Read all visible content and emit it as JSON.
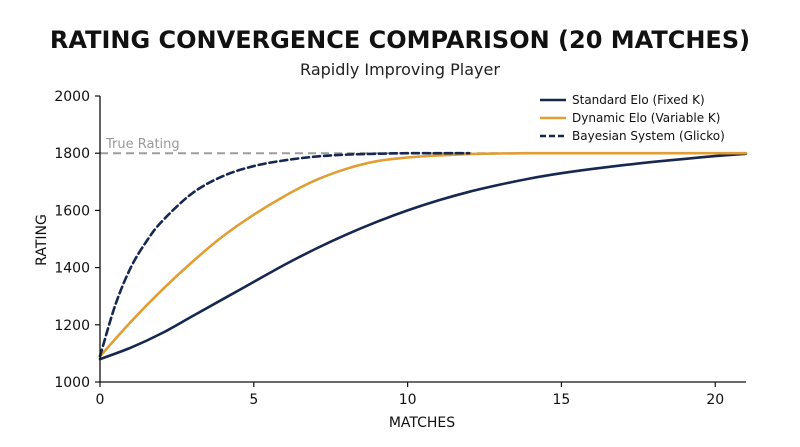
{
  "chart_data": {
    "type": "line",
    "title": "RATING CONVERGENCE COMPARISON (20 MATCHES)",
    "subtitle": "Rapidly Improving Player",
    "xlabel": "MATCHES",
    "ylabel": "RATING",
    "xlim": [
      0,
      21
    ],
    "ylim": [
      1000,
      2000
    ],
    "xticks": [
      0,
      5,
      10,
      15,
      20
    ],
    "yticks": [
      1000,
      1200,
      1400,
      1600,
      1800,
      2000
    ],
    "grid": false,
    "legend_position": "top-right",
    "reference_line": {
      "label": "True Rating",
      "y": 1800,
      "color": "#9e9e9e",
      "style": "dashed"
    },
    "series": [
      {
        "name": "Standard Elo (Fixed K)",
        "color": "#16284f",
        "style": "solid",
        "x": [
          0,
          1,
          2,
          3,
          4,
          5,
          6,
          7,
          8,
          9,
          10,
          11,
          12,
          13,
          14,
          15,
          16,
          17,
          18,
          19,
          20,
          21
        ],
        "y": [
          1080,
          1120,
          1170,
          1230,
          1290,
          1350,
          1410,
          1465,
          1515,
          1560,
          1600,
          1635,
          1665,
          1690,
          1712,
          1730,
          1745,
          1758,
          1770,
          1780,
          1790,
          1798
        ]
      },
      {
        "name": "Dynamic Elo (Variable K)",
        "color": "#e09e35",
        "style": "solid",
        "x": [
          0,
          1,
          2,
          3,
          4,
          5,
          6,
          7,
          8,
          9,
          10,
          11,
          12,
          13,
          14,
          15,
          16,
          17,
          18,
          19,
          20,
          21
        ],
        "y": [
          1090,
          1210,
          1320,
          1420,
          1510,
          1585,
          1650,
          1705,
          1745,
          1772,
          1785,
          1792,
          1797,
          1799,
          1800,
          1800,
          1800,
          1800,
          1800,
          1800,
          1800,
          1800
        ]
      },
      {
        "name": "Bayesian System (Glicko)",
        "color": "#16284f",
        "style": "dashed",
        "x": [
          0,
          0.5,
          1,
          1.5,
          2,
          3,
          4,
          5,
          6,
          7,
          8,
          9,
          10,
          11,
          12
        ],
        "y": [
          1090,
          1270,
          1400,
          1490,
          1560,
          1660,
          1720,
          1755,
          1775,
          1788,
          1795,
          1798,
          1800,
          1800,
          1800
        ]
      }
    ]
  }
}
